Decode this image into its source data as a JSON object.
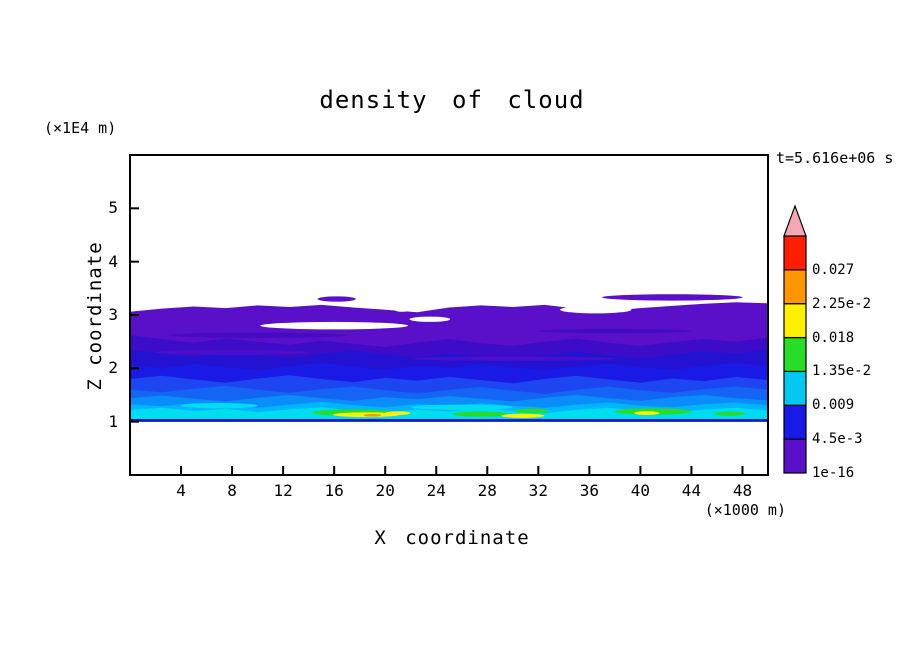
{
  "title": "density of cloud",
  "annotations": {
    "time_label": "t=5.616e+06 s",
    "z_axis_unit": "(×1E4 m)",
    "x_axis_unit": "(×1000 m)"
  },
  "axes": {
    "x": {
      "label": "X coordinate",
      "range": [
        0,
        50
      ],
      "tick_values": [
        4,
        8,
        12,
        16,
        20,
        24,
        28,
        32,
        36,
        40,
        44,
        48
      ],
      "tick_labels": [
        "4",
        "8",
        "12",
        "16",
        "20",
        "24",
        "28",
        "32",
        "36",
        "40",
        "44",
        "48"
      ]
    },
    "z": {
      "label": "Z coordinate",
      "range": [
        0,
        6
      ],
      "tick_values": [
        1,
        2,
        3,
        4,
        5
      ],
      "tick_labels": [
        "1",
        "2",
        "3",
        "4",
        "5"
      ]
    }
  },
  "colorbar": {
    "boundary_labels_bottom_to_top": [
      "1e-16",
      "4.5e-3",
      "0.009",
      "1.35e-2",
      "0.018",
      "2.25e-2",
      "0.027"
    ],
    "segment_colors_bottom_to_top": [
      "#5A0FC8",
      "#1A1AE6",
      "#00C8F0",
      "#28DC28",
      "#FFF000",
      "#FF9600",
      "#FF1E00"
    ],
    "overflow_arrow_color": "#F5A8B4"
  },
  "chart_data": {
    "type": "filled-contour",
    "title": "density of cloud",
    "xlabel": "X coordinate (×1000 m)",
    "ylabel": "Z coordinate (×1E4 m)",
    "time_annotation": "t=5.616e+06 s",
    "x_range": [
      0,
      50
    ],
    "z_range": [
      0,
      6
    ],
    "contour_levels": [
      1e-16,
      0.0045,
      0.009,
      0.0135,
      0.018,
      0.0225,
      0.027
    ],
    "cloud_base_z": 1.0,
    "cloud_top_z_approx": 3.2,
    "x_samples": [
      0,
      2.5,
      5,
      7.5,
      10,
      12.5,
      15,
      17.5,
      20,
      22.5,
      25,
      27.5,
      30,
      32.5,
      35,
      37.5,
      40,
      42.5,
      45,
      47.5,
      50
    ],
    "layers": [
      {
        "name": "violet-lt-4.5e-3",
        "color": "#5A0FC8",
        "top": [
          3.06,
          3.12,
          3.16,
          3.13,
          3.18,
          3.15,
          3.19,
          3.14,
          3.1,
          3.05,
          3.14,
          3.18,
          3.15,
          3.19,
          3.12,
          3.08,
          3.13,
          3.17,
          3.21,
          3.24,
          3.22
        ]
      },
      {
        "name": "indigo",
        "color": "#3C0CC8",
        "top": [
          2.62,
          2.55,
          2.48,
          2.56,
          2.5,
          2.44,
          2.52,
          2.46,
          2.4,
          2.48,
          2.55,
          2.47,
          2.42,
          2.5,
          2.56,
          2.48,
          2.42,
          2.49,
          2.55,
          2.5,
          2.58
        ]
      },
      {
        "name": "dark-blue",
        "color": "#2312D2",
        "top": [
          2.34,
          2.28,
          2.22,
          2.3,
          2.25,
          2.19,
          2.27,
          2.33,
          2.26,
          2.2,
          2.28,
          2.23,
          2.17,
          2.25,
          2.31,
          2.24,
          2.18,
          2.26,
          2.32,
          2.27,
          2.35
        ]
      },
      {
        "name": "blue-4.5e-3-to-9e-3",
        "color": "#1A1AE6",
        "top": [
          2.06,
          2.0,
          2.08,
          2.02,
          1.96,
          2.04,
          2.1,
          2.03,
          1.97,
          2.05,
          2.0,
          2.08,
          2.02,
          1.96,
          2.04,
          2.09,
          2.02,
          1.97,
          2.05,
          2.1,
          2.04
        ]
      },
      {
        "name": "blue-mid",
        "color": "#1E46F0",
        "top": [
          1.8,
          1.86,
          1.79,
          1.73,
          1.81,
          1.87,
          1.8,
          1.74,
          1.82,
          1.77,
          1.84,
          1.78,
          1.72,
          1.8,
          1.86,
          1.79,
          1.73,
          1.81,
          1.76,
          1.84,
          1.78
        ]
      },
      {
        "name": "royal-blue",
        "color": "#1464F5",
        "top": [
          1.6,
          1.55,
          1.62,
          1.67,
          1.6,
          1.54,
          1.61,
          1.66,
          1.59,
          1.53,
          1.6,
          1.65,
          1.58,
          1.52,
          1.6,
          1.66,
          1.59,
          1.54,
          1.61,
          1.66,
          1.6
        ]
      },
      {
        "name": "dodger-blue",
        "color": "#0A8CFA",
        "top": [
          1.44,
          1.49,
          1.43,
          1.38,
          1.45,
          1.5,
          1.44,
          1.39,
          1.46,
          1.42,
          1.48,
          1.43,
          1.38,
          1.45,
          1.5,
          1.44,
          1.39,
          1.46,
          1.5,
          1.44,
          1.4
        ]
      },
      {
        "name": "cyan-blue-9e-3-to-1.35e-2",
        "color": "#00B4FF",
        "top": [
          1.33,
          1.29,
          1.35,
          1.31,
          1.26,
          1.32,
          1.37,
          1.31,
          1.27,
          1.33,
          1.29,
          1.35,
          1.3,
          1.26,
          1.32,
          1.36,
          1.3,
          1.27,
          1.33,
          1.36,
          1.31
        ]
      },
      {
        "name": "cyan",
        "color": "#00DCF0",
        "top": [
          1.22,
          1.26,
          1.2,
          1.24,
          1.18,
          1.23,
          1.27,
          1.21,
          1.17,
          1.23,
          1.19,
          1.25,
          1.2,
          1.16,
          1.22,
          1.26,
          1.2,
          1.17,
          1.23,
          1.26,
          1.21
        ]
      }
    ],
    "patches": [
      {
        "kind": "streak",
        "color": "#430CC4",
        "cx": 10,
        "cz": 2.62,
        "rx": 7.0,
        "rz": 0.05
      },
      {
        "kind": "streak",
        "color": "#430CC4",
        "cx": 38,
        "cz": 2.7,
        "rx": 6.0,
        "rz": 0.04
      },
      {
        "kind": "streak",
        "color": "#4B0ECC",
        "cx": 8,
        "cz": 2.3,
        "rx": 6.0,
        "rz": 0.05
      },
      {
        "kind": "streak",
        "color": "#4B0ECC",
        "cx": 30,
        "cz": 2.18,
        "rx": 8.0,
        "rz": 0.04
      },
      {
        "kind": "hole",
        "color": "#FFFFFF",
        "cx": 16,
        "cz": 2.8,
        "rx": 5.8,
        "rz": 0.07
      },
      {
        "kind": "hole",
        "color": "#FFFFFF",
        "cx": 23.5,
        "cz": 2.92,
        "rx": 1.6,
        "rz": 0.05
      },
      {
        "kind": "hole",
        "color": "#FFFFFF",
        "cx": 36.5,
        "cz": 3.1,
        "rx": 2.8,
        "rz": 0.07
      },
      {
        "kind": "hole",
        "color": "#FFFFFF",
        "cx": 21.3,
        "cz": 3.18,
        "rx": 0.9,
        "rz": 0.12
      },
      {
        "kind": "sliver",
        "color": "#5A0FC8",
        "cx": 42.5,
        "cz": 3.33,
        "rx": 5.5,
        "rz": 0.06
      },
      {
        "kind": "sliver",
        "color": "#5A0FC8",
        "cx": 16.2,
        "cz": 3.3,
        "rx": 1.5,
        "rz": 0.05
      },
      {
        "kind": "streak",
        "color": "#00DCF0",
        "cx": 7,
        "cz": 1.3,
        "rx": 3.0,
        "rz": 0.05
      },
      {
        "kind": "streak",
        "color": "#00DCF0",
        "cx": 26,
        "cz": 1.27,
        "rx": 4.0,
        "rz": 0.05
      },
      {
        "kind": "blob",
        "color": "#28DC28",
        "cx": 17.5,
        "cz": 1.17,
        "rx": 3.2,
        "rz": 0.06
      },
      {
        "kind": "blob",
        "color": "#28DC28",
        "cx": 27.5,
        "cz": 1.14,
        "rx": 2.2,
        "rz": 0.05
      },
      {
        "kind": "blob",
        "color": "#28DC28",
        "cx": 41,
        "cz": 1.19,
        "rx": 3.0,
        "rz": 0.06
      },
      {
        "kind": "blob",
        "color": "#28DC28",
        "cx": 31.5,
        "cz": 1.2,
        "rx": 1.4,
        "rz": 0.04
      },
      {
        "kind": "blob",
        "color": "#28DC28",
        "cx": 47,
        "cz": 1.15,
        "rx": 1.2,
        "rz": 0.04
      },
      {
        "kind": "blob",
        "color": "#FFF000",
        "cx": 18.5,
        "cz": 1.13,
        "rx": 2.6,
        "rz": 0.045
      },
      {
        "kind": "blob",
        "color": "#FFF000",
        "cx": 21.0,
        "cz": 1.16,
        "rx": 1.0,
        "rz": 0.035
      },
      {
        "kind": "blob",
        "color": "#FFF000",
        "cx": 30.8,
        "cz": 1.11,
        "rx": 1.7,
        "rz": 0.04
      },
      {
        "kind": "blob",
        "color": "#FFF000",
        "cx": 40.5,
        "cz": 1.16,
        "rx": 1.0,
        "rz": 0.035
      },
      {
        "kind": "blob",
        "color": "#FF9600",
        "cx": 19.0,
        "cz": 1.12,
        "rx": 0.7,
        "rz": 0.025
      },
      {
        "kind": "rect",
        "color": "#1414B4",
        "x0": 0,
        "x1": 50,
        "z0": 1.0,
        "z1": 1.05
      }
    ]
  }
}
